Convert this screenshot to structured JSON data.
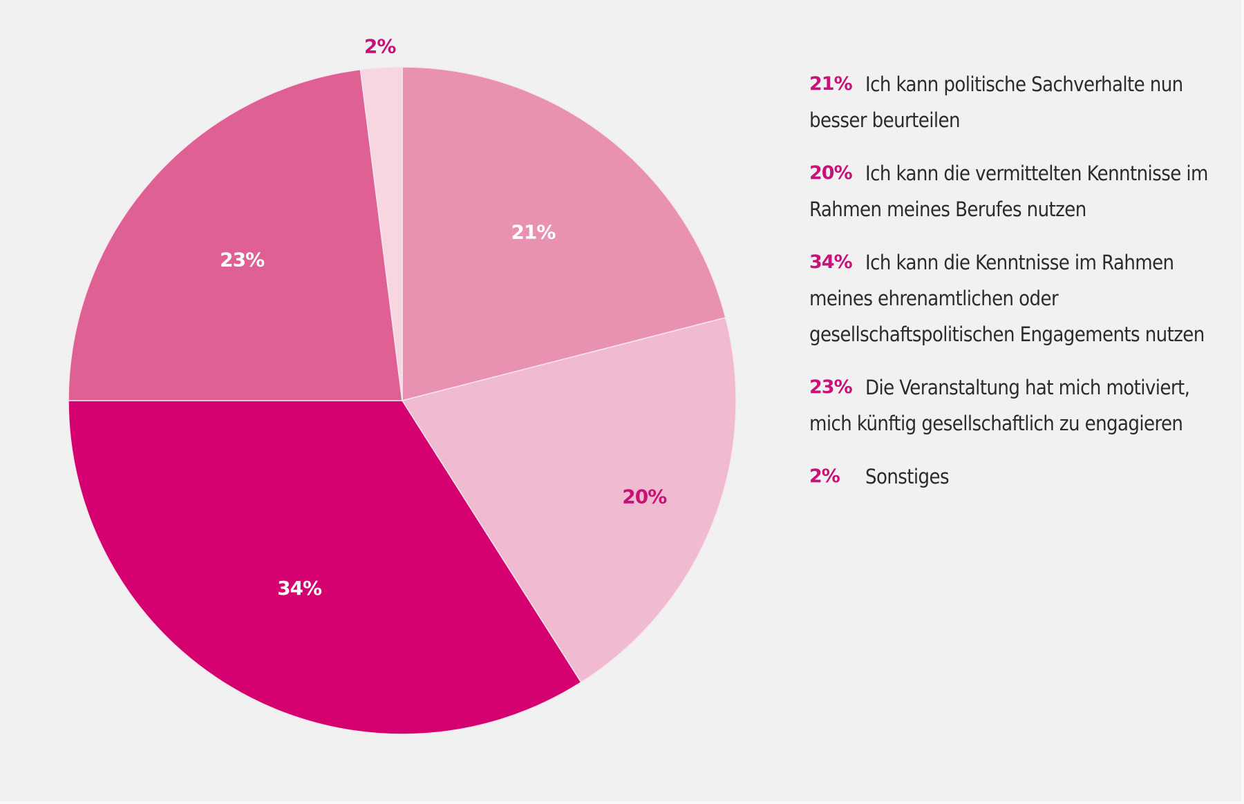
{
  "colors": {
    "background": "#f1f1f1",
    "accent": "#c8127a",
    "text": "#2b2b2b"
  },
  "chart_data": {
    "type": "pie",
    "start_angle": "12 o'clock",
    "direction": "clockwise",
    "slices": [
      {
        "label": "Ich kann politische Sachverhalte nun besser beurteilen",
        "value": 21,
        "value_label": "21%",
        "color": "#e891b1",
        "label_color": "#ffffff"
      },
      {
        "label": "Ich kann die vermittelten Kenntnisse im Rahmen meines Berufes nutzen",
        "value": 20,
        "value_label": "20%",
        "color": "#f0bbd0",
        "label_color": "#c8127a"
      },
      {
        "label": "Ich kann die Kenntnisse im Rahmen meines ehrenamtlichen oder gesellschaftspolitischen Engagements nutzen",
        "value": 34,
        "value_label": "34%",
        "color": "#d4006f",
        "label_color": "#ffffff"
      },
      {
        "label": "Die Veranstaltung hat mich motiviert, mich künftig gesellschaftlich zu engagieren",
        "value": 23,
        "value_label": "23%",
        "color": "#df6092",
        "label_color": "#ffffff"
      },
      {
        "label": "Sonstiges",
        "value": 2,
        "value_label": "2%",
        "color": "#f7d6e2",
        "label_color": "#c8127a"
      }
    ],
    "legend_position": "right"
  }
}
